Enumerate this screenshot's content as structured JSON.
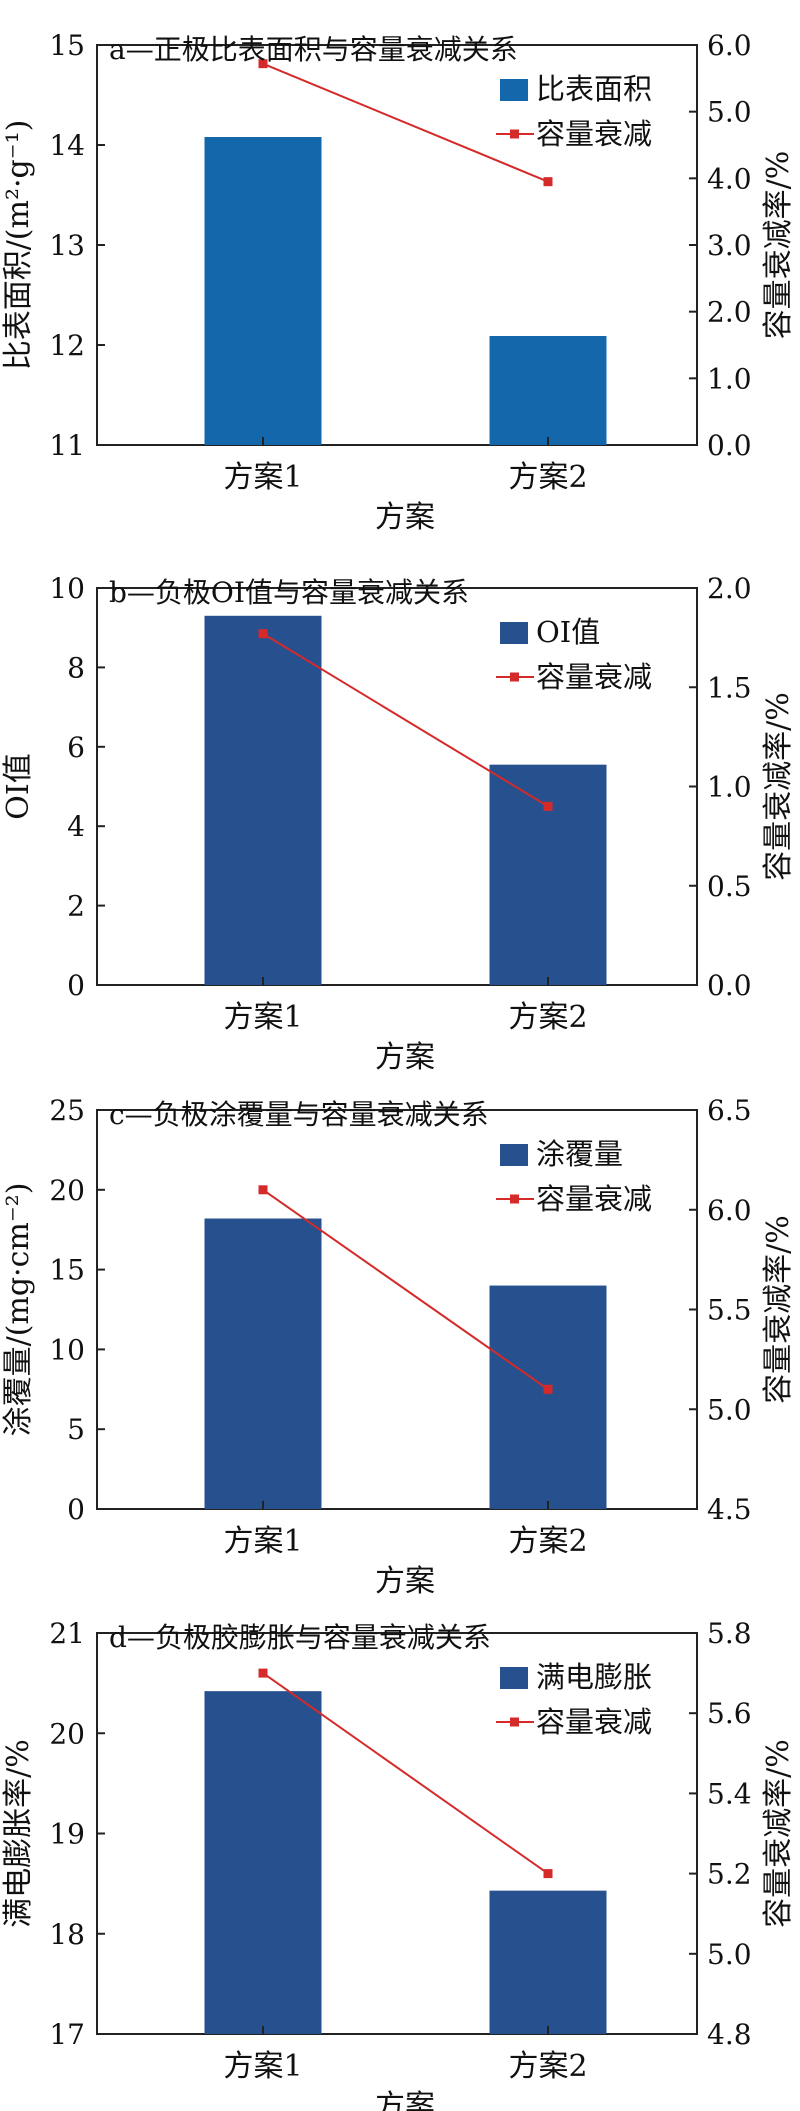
{
  "chart_data": [
    {
      "type": "bar",
      "title": "a—正极比表面积与容量衰减关系",
      "categories": [
        "方案1",
        "方案2"
      ],
      "xlabel": "方案",
      "ylabel": "比表面积/(m²·g⁻¹)",
      "y2label": "容量衰减率/%",
      "ylim": [
        11,
        15
      ],
      "y2lim": [
        0.0,
        6.0
      ],
      "yticks": [
        "11",
        "12",
        "13",
        "14",
        "15"
      ],
      "y2ticks": [
        "0.0",
        "1.0",
        "2.0",
        "3.0",
        "4.0",
        "5.0",
        "6.0"
      ],
      "legend_position": "top-right",
      "series": [
        {
          "name": "比表面积",
          "kind": "bar",
          "axis": "left",
          "color": "#1467ab",
          "values": [
            14.08,
            12.09
          ]
        },
        {
          "name": "容量衰减",
          "kind": "line",
          "axis": "right",
          "color": "#d42a2a",
          "values": [
            5.72,
            3.95
          ]
        }
      ]
    },
    {
      "type": "bar",
      "title": "b—负极OI值与容量衰减关系",
      "categories": [
        "方案1",
        "方案2"
      ],
      "xlabel": "方案",
      "ylabel": "OI值",
      "y2label": "容量衰减率/%",
      "ylim": [
        0,
        10
      ],
      "y2lim": [
        0.0,
        2.0
      ],
      "yticks": [
        "0",
        "2",
        "4",
        "6",
        "8",
        "10"
      ],
      "y2ticks": [
        "0.0",
        "0.5",
        "1.0",
        "1.5",
        "2.0"
      ],
      "legend_position": "top-right",
      "series": [
        {
          "name": "OI值",
          "kind": "bar",
          "axis": "left",
          "color": "#27508e",
          "values": [
            9.3,
            5.55
          ]
        },
        {
          "name": "容量衰减",
          "kind": "line",
          "axis": "right",
          "color": "#d42a2a",
          "values": [
            1.77,
            0.9
          ]
        }
      ]
    },
    {
      "type": "bar",
      "title": "c—负极涂覆量与容量衰减关系",
      "categories": [
        "方案1",
        "方案2"
      ],
      "xlabel": "方案",
      "ylabel": "涂覆量/(mg·cm⁻²)",
      "y2label": "容量衰减率/%",
      "ylim": [
        0,
        25
      ],
      "y2lim": [
        4.5,
        6.5
      ],
      "yticks": [
        "0",
        "5",
        "10",
        "15",
        "20",
        "25"
      ],
      "y2ticks": [
        "4.5",
        "5.0",
        "5.5",
        "6.0",
        "6.5"
      ],
      "legend_position": "top-right",
      "series": [
        {
          "name": "涂覆量",
          "kind": "bar",
          "axis": "left",
          "color": "#27508e",
          "values": [
            18.2,
            14.0
          ]
        },
        {
          "name": "容量衰减",
          "kind": "line",
          "axis": "right",
          "color": "#d42a2a",
          "values": [
            6.1,
            5.1
          ]
        }
      ]
    },
    {
      "type": "bar",
      "title": "d—负极胶膨胀与容量衰减关系",
      "categories": [
        "方案1",
        "方案2"
      ],
      "xlabel": "方案",
      "ylabel": "满电膨胀率/%",
      "y2label": "容量衰减率/%",
      "ylim": [
        17,
        21
      ],
      "y2lim": [
        4.8,
        5.8
      ],
      "yticks": [
        "17",
        "18",
        "19",
        "20",
        "21"
      ],
      "y2ticks": [
        "4.8",
        "5.0",
        "5.2",
        "5.4",
        "5.6",
        "5.8"
      ],
      "legend_position": "top-right",
      "series": [
        {
          "name": "满电膨胀",
          "kind": "bar",
          "axis": "left",
          "color": "#27508e",
          "values": [
            20.42,
            18.43
          ]
        },
        {
          "name": "容量衰减",
          "kind": "line",
          "axis": "right",
          "color": "#d42a2a",
          "values": [
            5.7,
            5.2
          ]
        }
      ]
    }
  ]
}
